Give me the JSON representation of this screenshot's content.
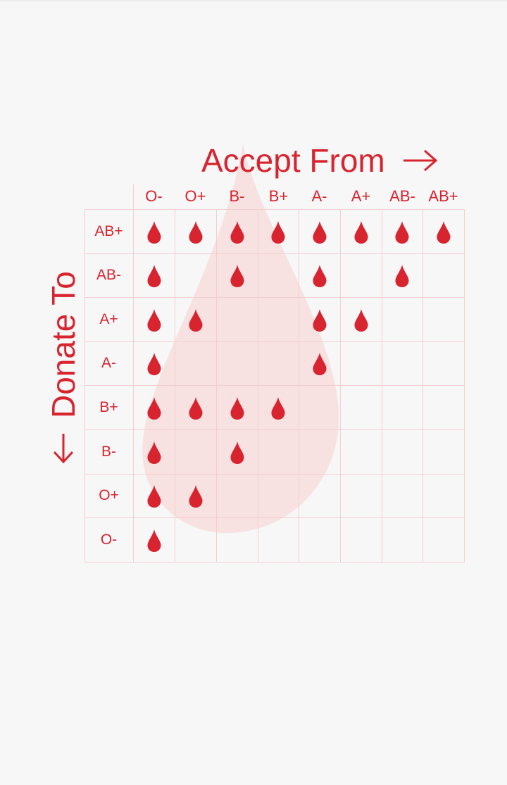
{
  "titles": {
    "accept": "Accept From",
    "donate": "Donate To"
  },
  "icons": {
    "accept_arrow": "right-arrow-icon",
    "donate_arrow": "down-arrow-icon",
    "drop": "blood-drop-icon"
  },
  "colors": {
    "accent": "#d8242f",
    "grid": "#f3cfcf",
    "background_drop": "#f8e1e1",
    "background": "#f7f7f7"
  },
  "columns": [
    "O-",
    "O+",
    "B-",
    "B+",
    "A-",
    "A+",
    "AB-",
    "AB+"
  ],
  "rows": [
    {
      "label": "AB+",
      "compatible": [
        "O-",
        "O+",
        "B-",
        "B+",
        "A-",
        "A+",
        "AB-",
        "AB+"
      ]
    },
    {
      "label": "AB-",
      "compatible": [
        "O-",
        "B-",
        "A-",
        "AB-"
      ]
    },
    {
      "label": "A+",
      "compatible": [
        "O-",
        "O+",
        "A-",
        "A+"
      ]
    },
    {
      "label": "A-",
      "compatible": [
        "O-",
        "A-"
      ]
    },
    {
      "label": "B+",
      "compatible": [
        "O-",
        "O+",
        "B-",
        "B+"
      ]
    },
    {
      "label": "B-",
      "compatible": [
        "O-",
        "B-"
      ]
    },
    {
      "label": "O+",
      "compatible": [
        "O-",
        "O+"
      ]
    },
    {
      "label": "O-",
      "compatible": [
        "O-"
      ]
    }
  ]
}
